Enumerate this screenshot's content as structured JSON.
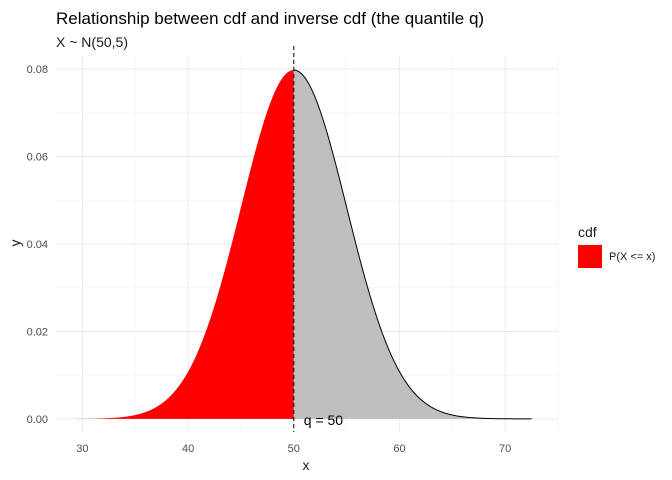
{
  "chart_data": {
    "type": "area",
    "title": "Relationship between cdf and inverse cdf (the quantile q)",
    "subtitle": "X ~ N(50,5)",
    "xlabel": "x",
    "ylabel": "y",
    "xlim": [
      27.5,
      75
    ],
    "ylim": [
      -0.003,
      0.083
    ],
    "x_ticks": [
      30,
      40,
      50,
      60,
      70
    ],
    "y_ticks": [
      "0.00",
      "0.02",
      "0.04",
      "0.06",
      "0.08"
    ],
    "grid": true,
    "distribution": {
      "family": "normal",
      "mean": 50,
      "sd": 5,
      "x_range": [
        28.5,
        72.5
      ]
    },
    "quantile": 50,
    "annotation": "q = 50",
    "legend": {
      "title": "cdf",
      "position": "right",
      "entries": [
        {
          "label": "P(X <= x)",
          "color": "#ff0000"
        }
      ]
    },
    "colors": {
      "below_q": "#ff0000",
      "above_q": "#bebebe",
      "curve": "#000000"
    }
  }
}
